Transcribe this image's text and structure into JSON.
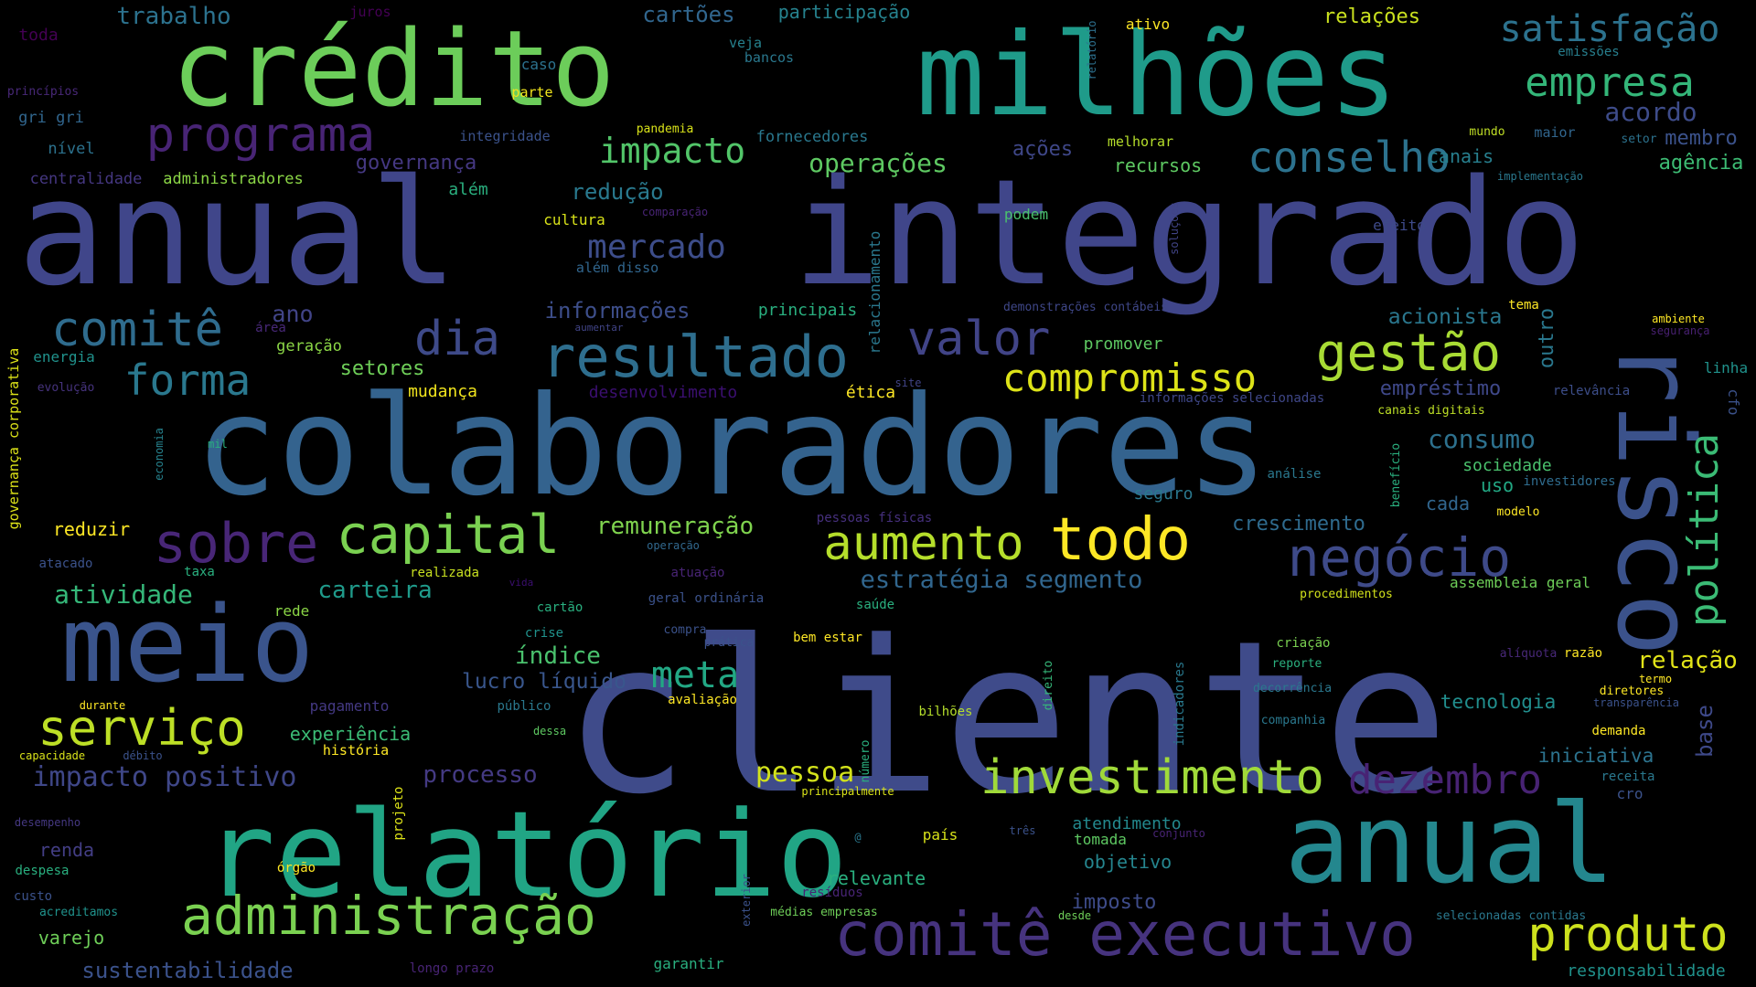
{
  "words": [
    {
      "text": "cliente",
      "color": "#3f4b8a"
    },
    {
      "text": "anual",
      "color": "#40468a"
    },
    {
      "text": "integrado",
      "color": "#40468a"
    },
    {
      "text": "colaboradores",
      "color": "#34638e"
    },
    {
      "text": "crédito",
      "color": "#6ccd5a"
    },
    {
      "text": "milhões",
      "color": "#1f9b8a"
    },
    {
      "text": "relatório",
      "color": "#21a585"
    },
    {
      "text": "anual",
      "color": "#24878e"
    },
    {
      "text": "meio",
      "color": "#3a548c"
    },
    {
      "text": "risco",
      "color": "#3b528b"
    },
    {
      "text": "comitê executivo",
      "color": "#46337e"
    },
    {
      "text": "administração",
      "color": "#7ad151"
    },
    {
      "text": "resultado",
      "color": "#2e6e8e"
    },
    {
      "text": "negócio",
      "color": "#3e4a89"
    },
    {
      "text": "capital",
      "color": "#7ad151"
    },
    {
      "text": "todo",
      "color": "#fde725"
    },
    {
      "text": "aumento",
      "color": "#b5de2b"
    },
    {
      "text": "sobre",
      "color": "#482677"
    },
    {
      "text": "produto",
      "color": "#cde11d"
    },
    {
      "text": "serviço",
      "color": "#bddf26"
    },
    {
      "text": "investimento",
      "color": "#a0da39"
    },
    {
      "text": "gestão",
      "color": "#a8db34"
    },
    {
      "text": "política",
      "color": "#3bbb75"
    },
    {
      "text": "programa",
      "color": "#482475"
    },
    {
      "text": "valor",
      "color": "#414487"
    },
    {
      "text": "dia",
      "color": "#3e4a89"
    },
    {
      "text": "comitê",
      "color": "#2f6c8e"
    },
    {
      "text": "forma",
      "color": "#2a788e"
    },
    {
      "text": "compromisso",
      "color": "#dde318"
    },
    {
      "text": "dezembro",
      "color": "#482374"
    },
    {
      "text": "conselho",
      "color": "#2c728e"
    },
    {
      "text": "empresa",
      "color": "#34b679"
    },
    {
      "text": "satisfação",
      "color": "#2c728e"
    },
    {
      "text": "impacto",
      "color": "#52c569"
    },
    {
      "text": "mercado",
      "color": "#3d4d8a"
    },
    {
      "text": "meta",
      "color": "#22a884"
    },
    {
      "text": "pessoa",
      "color": "#d2e21b"
    },
    {
      "text": "impacto positivo",
      "color": "#3f4788"
    },
    {
      "text": "sustentabilidade",
      "color": "#3b528b"
    },
    {
      "text": "estratégia segmento",
      "color": "#31668e"
    },
    {
      "text": "atividade",
      "color": "#35b779"
    },
    {
      "text": "operações",
      "color": "#5ec962"
    },
    {
      "text": "redução",
      "color": "#29798e"
    },
    {
      "text": "remuneração",
      "color": "#7fd34e"
    },
    {
      "text": "informações",
      "color": "#3d4e8a"
    },
    {
      "text": "consumo",
      "color": "#2d718e"
    },
    {
      "text": "acordo",
      "color": "#3e4c8a"
    },
    {
      "text": "carteira",
      "color": "#1f9a8a"
    },
    {
      "text": "processo",
      "color": "#443a83"
    },
    {
      "text": "índice",
      "color": "#4ac16d"
    },
    {
      "text": "lucro líquido",
      "color": "#39568c"
    },
    {
      "text": "relação",
      "color": "#e2e418"
    },
    {
      "text": "acionista",
      "color": "#2a778e"
    },
    {
      "text": "empréstimo",
      "color": "#3f4889"
    },
    {
      "text": "crescimento",
      "color": "#2f6b8e"
    },
    {
      "text": "tecnologia",
      "color": "#218e8d"
    },
    {
      "text": "iniciativa",
      "color": "#2c738e"
    },
    {
      "text": "base",
      "color": "#3e4989"
    },
    {
      "text": "outro",
      "color": "#2a788e"
    },
    {
      "text": "membro",
      "color": "#3b528b"
    },
    {
      "text": "agência",
      "color": "#3dbc74"
    },
    {
      "text": "ações",
      "color": "#3f4788"
    },
    {
      "text": "ano",
      "color": "#414487"
    },
    {
      "text": "setores",
      "color": "#6ece58"
    },
    {
      "text": "objetivo",
      "color": "#25858e"
    },
    {
      "text": "imposto",
      "color": "#3e4c8a"
    },
    {
      "text": "relevante",
      "color": "#2ab07f"
    },
    {
      "text": "atendimento",
      "color": "#23898e"
    },
    {
      "text": "trabalho",
      "color": "#2c728e"
    },
    {
      "text": "cartões",
      "color": "#31668e"
    },
    {
      "text": "participação",
      "color": "#26828e"
    },
    {
      "text": "relações",
      "color": "#cae11f"
    },
    {
      "text": "governança",
      "color": "#453882"
    },
    {
      "text": "além",
      "color": "#2ab07f"
    },
    {
      "text": "recursos",
      "color": "#5ec962"
    },
    {
      "text": "canais",
      "color": "#277f8e"
    },
    {
      "text": "cultura",
      "color": "#d8e219"
    },
    {
      "text": "mudança",
      "color": "#f1e51d"
    },
    {
      "text": "ética",
      "color": "#fde725"
    },
    {
      "text": "desenvolvimento",
      "color": "#3b0f70"
    },
    {
      "text": "promover",
      "color": "#5ec962"
    },
    {
      "text": "seguro",
      "color": "#2a788e"
    },
    {
      "text": "uso",
      "color": "#22a884"
    },
    {
      "text": "sociedade",
      "color": "#4ac16d"
    },
    {
      "text": "cada",
      "color": "#31668e"
    },
    {
      "text": "varejo",
      "color": "#6ece58"
    },
    {
      "text": "renda",
      "color": "#433e85"
    },
    {
      "text": "pagamento",
      "color": "#443983"
    },
    {
      "text": "experiência",
      "color": "#3bbb75"
    },
    {
      "text": "história",
      "color": "#fde725"
    },
    {
      "text": "reduzir",
      "color": "#fde725"
    },
    {
      "text": "geração",
      "color": "#8bd646"
    },
    {
      "text": "energia",
      "color": "#20928c"
    },
    {
      "text": "principais",
      "color": "#29af7f"
    },
    {
      "text": "fornecedores",
      "color": "#2a788e"
    },
    {
      "text": "integridade",
      "color": "#3b528b"
    },
    {
      "text": "administradores",
      "color": "#8bd646"
    },
    {
      "text": "centralidade",
      "color": "#453781"
    },
    {
      "text": "nível",
      "color": "#2c728e"
    },
    {
      "text": "gri gri",
      "color": "#31668e"
    },
    {
      "text": "toda",
      "color": "#440154"
    },
    {
      "text": "juros",
      "color": "#440154"
    },
    {
      "text": "caso",
      "color": "#2c728e"
    },
    {
      "text": "veja",
      "color": "#26828e"
    },
    {
      "text": "bancos",
      "color": "#2a788e"
    },
    {
      "text": "parte",
      "color": "#f1e51d"
    },
    {
      "text": "pandemia",
      "color": "#d8e219"
    },
    {
      "text": "comparação",
      "color": "#482475"
    },
    {
      "text": "ativo",
      "color": "#fde725"
    },
    {
      "text": "relatório",
      "color": "#2d708e"
    },
    {
      "text": "emissões",
      "color": "#277f8e"
    },
    {
      "text": "mundo",
      "color": "#c0df25"
    },
    {
      "text": "maior",
      "color": "#31668e"
    },
    {
      "text": "setor",
      "color": "#2c728e"
    },
    {
      "text": "melhorar",
      "color": "#b5de2b"
    },
    {
      "text": "implementação",
      "color": "#2a788e"
    },
    {
      "text": "efeito",
      "color": "#3e4a89"
    },
    {
      "text": "podem",
      "color": "#4ac16d"
    },
    {
      "text": "soluções",
      "color": "#414487"
    },
    {
      "text": "demonstrações contábeis",
      "color": "#3f4788"
    },
    {
      "text": "relacionamento",
      "color": "#2a788e"
    },
    {
      "text": "além disso",
      "color": "#31668e"
    },
    {
      "text": "aumentar",
      "color": "#414487"
    },
    {
      "text": "área",
      "color": "#482878"
    },
    {
      "text": "evolução",
      "color": "#46337e"
    },
    {
      "text": "mil",
      "color": "#29af7f"
    },
    {
      "text": "economia",
      "color": "#26828e"
    },
    {
      "text": "governança corporativa",
      "color": "#dde318"
    },
    {
      "text": "site",
      "color": "#414487"
    },
    {
      "text": "informações selecionadas",
      "color": "#3f4788"
    },
    {
      "text": "canais digitais",
      "color": "#bddf26"
    },
    {
      "text": "tema",
      "color": "#fde725"
    },
    {
      "text": "ambiente",
      "color": "#fde725"
    },
    {
      "text": "segurança",
      "color": "#482071"
    },
    {
      "text": "linha",
      "color": "#20928c"
    },
    {
      "text": "relevância",
      "color": "#3d4e8a"
    },
    {
      "text": "cfo",
      "color": "#3b528b"
    },
    {
      "text": "análise",
      "color": "#2a788e"
    },
    {
      "text": "benefício",
      "color": "#2ab07f"
    },
    {
      "text": "investidores",
      "color": "#2f6c8e"
    },
    {
      "text": "modelo",
      "color": "#fde725"
    },
    {
      "text": "pessoas físicas",
      "color": "#46307e"
    },
    {
      "text": "operação",
      "color": "#31688e"
    },
    {
      "text": "realizada",
      "color": "#c8e020"
    },
    {
      "text": "atuação",
      "color": "#482475"
    },
    {
      "text": "geral ordinária",
      "color": "#3b528b"
    },
    {
      "text": "saúde",
      "color": "#2ab07f"
    },
    {
      "text": "taxa",
      "color": "#2ab07f"
    },
    {
      "text": "atacado",
      "color": "#3b528b"
    },
    {
      "text": "vida",
      "color": "#3b0f70"
    },
    {
      "text": "rede",
      "color": "#8bd646"
    },
    {
      "text": "cartão",
      "color": "#29af7f"
    },
    {
      "text": "crise",
      "color": "#20928c"
    },
    {
      "text": "compra",
      "color": "#3b528b"
    },
    {
      "text": "prática",
      "color": "#3b528b"
    },
    {
      "text": "bem estar",
      "color": "#fde725"
    },
    {
      "text": "assembleia geral",
      "color": "#6ece58"
    },
    {
      "text": "procedimentos",
      "color": "#d2e21b"
    },
    {
      "text": "criação",
      "color": "#7ad151"
    },
    {
      "text": "reporte",
      "color": "#2ab07f"
    },
    {
      "text": "alíquota",
      "color": "#482878"
    },
    {
      "text": "razão",
      "color": "#fde725"
    },
    {
      "text": "decorrência",
      "color": "#2a788e"
    },
    {
      "text": "diretores",
      "color": "#fde725"
    },
    {
      "text": "termo",
      "color": "#fde725"
    },
    {
      "text": "transparência",
      "color": "#3b528b"
    },
    {
      "text": "companhia",
      "color": "#2a788e"
    },
    {
      "text": "demanda",
      "color": "#fde725"
    },
    {
      "text": "indicadores",
      "color": "#29798e"
    },
    {
      "text": "direito",
      "color": "#35b779"
    },
    {
      "text": "bilhões",
      "color": "#b5de2b"
    },
    {
      "text": "avaliação",
      "color": "#fde725"
    },
    {
      "text": "público",
      "color": "#2a788e"
    },
    {
      "text": "dessa",
      "color": "#5ec962"
    },
    {
      "text": "durante",
      "color": "#fde725"
    },
    {
      "text": "capacidade",
      "color": "#d8e219"
    },
    {
      "text": "débito",
      "color": "#3b528b"
    },
    {
      "text": "número",
      "color": "#2ab07f"
    },
    {
      "text": "principalmente",
      "color": "#d8e219"
    },
    {
      "text": "desempenho",
      "color": "#453882"
    },
    {
      "text": "projeto",
      "color": "#dde318"
    },
    {
      "text": "despesa",
      "color": "#29af7f"
    },
    {
      "text": "custo",
      "color": "#3b528b"
    },
    {
      "text": "órgão",
      "color": "#fde725"
    },
    {
      "text": "país",
      "color": "#d8e219"
    },
    {
      "text": "três",
      "color": "#3b528b"
    },
    {
      "text": "tomada",
      "color": "#5ec962"
    },
    {
      "text": "conjunto",
      "color": "#482475"
    },
    {
      "text": "exterior",
      "color": "#3b528b"
    },
    {
      "text": "resíduos",
      "color": "#482475"
    },
    {
      "text": "médias empresas",
      "color": "#6ece58"
    },
    {
      "text": "desde",
      "color": "#6ece58"
    },
    {
      "text": "selecionadas contidas",
      "color": "#2a788e"
    },
    {
      "text": "responsabilidade",
      "color": "#20928c"
    },
    {
      "text": "cro",
      "color": "#3b528b"
    },
    {
      "text": "receita",
      "color": "#2a788e"
    },
    {
      "text": "acreditamos",
      "color": "#20928c"
    },
    {
      "text": "longo prazo",
      "color": "#482475"
    },
    {
      "text": "garantir",
      "color": "#29af7f"
    },
    {
      "text": "princípios",
      "color": "#482878"
    },
    {
      "text": "@",
      "color": "#2a788e"
    }
  ]
}
